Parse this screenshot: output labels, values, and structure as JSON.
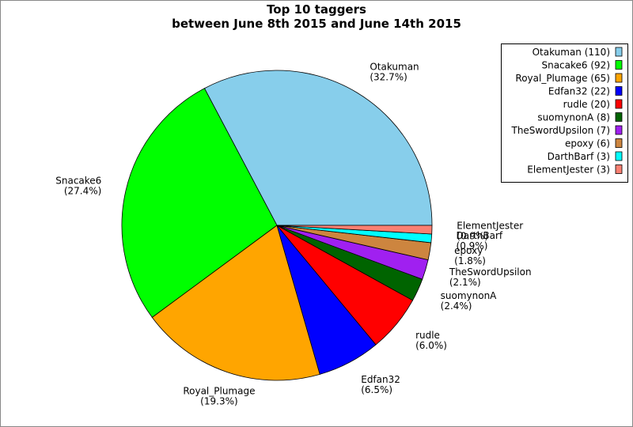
{
  "chart_data": {
    "type": "pie",
    "title": "Top 10 taggers",
    "subtitle": "between June 8th 2015 and June 14th 2015",
    "categories": [
      "Otakuman",
      "Snacake6",
      "Royal_Plumage",
      "Edfan32",
      "rudle",
      "suomynonA",
      "TheSwordUpsilon",
      "epoxy",
      "DarthBarf",
      "ElementJester"
    ],
    "values": [
      110,
      92,
      65,
      22,
      20,
      8,
      7,
      6,
      3,
      3
    ],
    "percent_labels": [
      "(32.7%)",
      "(27.4%)",
      "(19.3%)",
      "(6.5%)",
      "(6.0%)",
      "(2.4%)",
      "(2.1%)",
      "(1.8%)",
      "(0.9%)",
      "(0.9%)"
    ],
    "legend_labels": [
      "Otakuman (110)",
      "Snacake6 (92)",
      "Royal_Plumage (65)",
      "Edfan32 (22)",
      "rudle (20)",
      "suomynonA (8)",
      "TheSwordUpsilon (7)",
      "epoxy (6)",
      "DarthBarf (3)",
      "ElementJester (3)"
    ],
    "colors": [
      "#87ceeb",
      "#00ff00",
      "#ffa500",
      "#0000ff",
      "#ff0000",
      "#006400",
      "#a020f0",
      "#cd853f",
      "#00ffff",
      "#fa8072"
    ],
    "legend_position": "upper right"
  }
}
